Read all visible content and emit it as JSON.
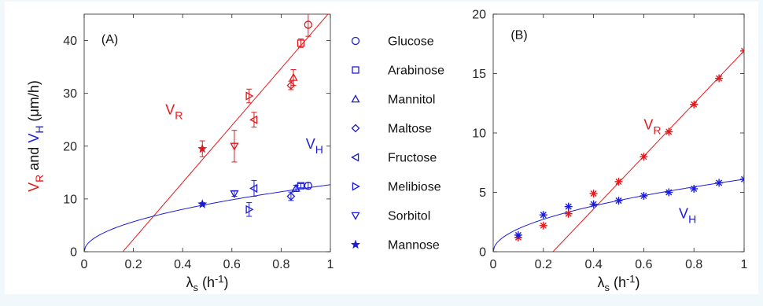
{
  "colors": {
    "r": "#e3191c",
    "h": "#1c1cd9",
    "axis": "#262626",
    "background": "#f0f8fc",
    "panel": "#ffffff"
  },
  "chart_data": [
    {
      "type": "scatter",
      "panel_label": "(A)",
      "xlim": [
        0,
        1
      ],
      "ylim": [
        0,
        45
      ],
      "xticks": [
        "0",
        "0.2",
        "0.4",
        "0.6",
        "0.8",
        "1"
      ],
      "yticks": [
        "0",
        "10",
        "20",
        "30",
        "40"
      ],
      "xlabel": {
        "sym": "λ",
        "sub": "s",
        "unit_pre": " (h",
        "unit_sup": "-1",
        "unit_post": ")"
      },
      "ylabel": {
        "r_main": "V",
        "r_sub": "R",
        "and": " and ",
        "h_main": "V",
        "h_sub": "H",
        "unit": " (μm/h)"
      },
      "annotations": [
        {
          "main": "V",
          "sub": "R",
          "x": 0.33,
          "y": 26,
          "color": "r"
        },
        {
          "main": "V",
          "sub": "H",
          "x": 0.9,
          "y": 19.5,
          "color": "h"
        }
      ],
      "legend": {
        "placement": "right",
        "entries": [
          {
            "label": "Glucose",
            "marker": "circle"
          },
          {
            "label": "Arabinose",
            "marker": "square"
          },
          {
            "label": "Mannitol",
            "marker": "triangle-up"
          },
          {
            "label": "Maltose",
            "marker": "diamond"
          },
          {
            "label": "Fructose",
            "marker": "triangle-left"
          },
          {
            "label": "Melibiose",
            "marker": "triangle-right"
          },
          {
            "label": "Sorbitol",
            "marker": "triangle-down"
          },
          {
            "label": "Mannose",
            "marker": "star"
          }
        ]
      },
      "fits": [
        {
          "name": "V_R",
          "color": "r",
          "kind": "linear",
          "x_intercept": 0.157,
          "slope": 54.0
        },
        {
          "name": "V_H",
          "color": "h",
          "kind": "power",
          "coef": 12.7,
          "exp": 0.5
        }
      ],
      "series": [
        {
          "name": "V_R",
          "color": "r",
          "points": [
            {
              "x": 0.91,
              "y": 43.0,
              "err": 2.2,
              "marker": "circle"
            },
            {
              "x": 0.88,
              "y": 39.5,
              "err": 0.8,
              "marker": "square"
            },
            {
              "x": 0.85,
              "y": 33.0,
              "err": 1.5,
              "marker": "triangle-up"
            },
            {
              "x": 0.84,
              "y": 31.5,
              "err": 0.8,
              "marker": "diamond"
            },
            {
              "x": 0.69,
              "y": 25.0,
              "err": 1.4,
              "marker": "triangle-left"
            },
            {
              "x": 0.67,
              "y": 29.5,
              "err": 1.3,
              "marker": "triangle-right"
            },
            {
              "x": 0.61,
              "y": 20.0,
              "err": 3.0,
              "marker": "triangle-down"
            },
            {
              "x": 0.48,
              "y": 19.5,
              "err": 1.5,
              "marker": "star"
            }
          ]
        },
        {
          "name": "V_H",
          "color": "h",
          "points": [
            {
              "x": 0.91,
              "y": 12.5,
              "err": 0.6,
              "marker": "circle"
            },
            {
              "x": 0.88,
              "y": 12.5,
              "err": 0.4,
              "marker": "square"
            },
            {
              "x": 0.86,
              "y": 12.0,
              "err": 0.6,
              "marker": "triangle-up"
            },
            {
              "x": 0.84,
              "y": 10.5,
              "err": 0.8,
              "marker": "diamond"
            },
            {
              "x": 0.69,
              "y": 12.0,
              "err": 1.5,
              "marker": "triangle-left"
            },
            {
              "x": 0.67,
              "y": 8.0,
              "err": 1.3,
              "marker": "triangle-right"
            },
            {
              "x": 0.61,
              "y": 11.0,
              "err": 0.5,
              "marker": "triangle-down"
            },
            {
              "x": 0.48,
              "y": 9.0,
              "err": 0.3,
              "marker": "star"
            }
          ]
        }
      ]
    },
    {
      "type": "scatter",
      "panel_label": "(B)",
      "xlim": [
        0,
        1
      ],
      "ylim": [
        0,
        20
      ],
      "xticks": [
        "0",
        "0.2",
        "0.4",
        "0.6",
        "0.8",
        "1"
      ],
      "yticks": [
        "0",
        "5",
        "10",
        "15",
        "20"
      ],
      "xlabel": {
        "sym": "λ",
        "sub": "s",
        "unit_pre": " (h",
        "unit_sup": "-1",
        "unit_post": ")"
      },
      "annotations": [
        {
          "main": "V",
          "sub": "R",
          "x": 0.6,
          "y": 10.3,
          "color": "r"
        },
        {
          "main": "V",
          "sub": "H",
          "x": 0.74,
          "y": 2.8,
          "color": "h"
        }
      ],
      "fits": [
        {
          "name": "V_R",
          "color": "r",
          "kind": "linear",
          "x_intercept": 0.238,
          "slope": 22.2
        },
        {
          "name": "V_H",
          "color": "h",
          "kind": "power",
          "coef": 6.1,
          "exp": 0.5
        }
      ],
      "series": [
        {
          "name": "V_R",
          "color": "r",
          "x": [
            0.1,
            0.2,
            0.3,
            0.4,
            0.5,
            0.6,
            0.7,
            0.8,
            0.9,
            1.0
          ],
          "y": [
            1.2,
            2.2,
            3.2,
            4.9,
            5.9,
            8.0,
            10.1,
            12.4,
            14.6,
            16.9
          ],
          "marker": "asterisk"
        },
        {
          "name": "V_H",
          "color": "h",
          "x": [
            0.1,
            0.2,
            0.3,
            0.4,
            0.5,
            0.6,
            0.7,
            0.8,
            0.9,
            1.0
          ],
          "y": [
            1.4,
            3.1,
            3.8,
            4.0,
            4.3,
            4.7,
            5.0,
            5.3,
            5.8,
            6.1
          ],
          "marker": "asterisk"
        }
      ]
    }
  ]
}
